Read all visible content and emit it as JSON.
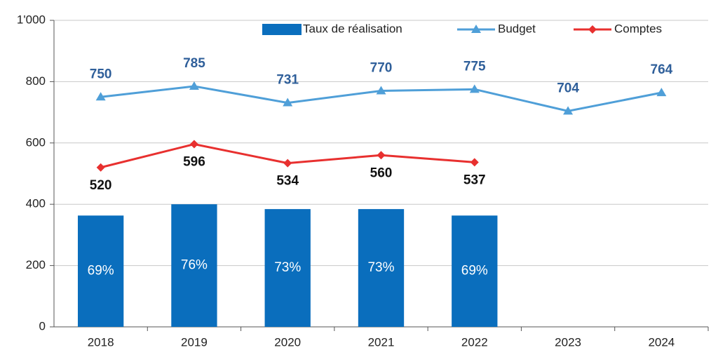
{
  "chart_data": {
    "type": "bar-line",
    "categories": [
      "2018",
      "2019",
      "2020",
      "2021",
      "2022",
      "2023",
      "2024"
    ],
    "series": [
      {
        "name": "Taux de réalisation",
        "type": "bar",
        "axis": "y2",
        "color": "#0a6ebd",
        "values": [
          69,
          76,
          73,
          73,
          69,
          null,
          null
        ],
        "value_labels": [
          "69%",
          "76%",
          "73%",
          "73%",
          "69%",
          null,
          null
        ]
      },
      {
        "name": "Budget",
        "type": "line",
        "marker": "triangle",
        "color": "#4f9fd8",
        "label_color": "#2f5f9a",
        "values": [
          750,
          785,
          731,
          770,
          775,
          704,
          764
        ]
      },
      {
        "name": "Comptes",
        "type": "line",
        "marker": "diamond",
        "color": "#e8302f",
        "label_color": "#111111",
        "values": [
          520,
          596,
          534,
          560,
          537,
          null,
          null
        ]
      }
    ],
    "ylim": [
      0,
      1000
    ],
    "yticks": [
      0,
      200,
      400,
      600,
      800,
      {
        "value": 1000,
        "label": "1'000"
      }
    ],
    "y2lim": [
      0,
      190
    ],
    "grid": true,
    "legend": "top"
  }
}
